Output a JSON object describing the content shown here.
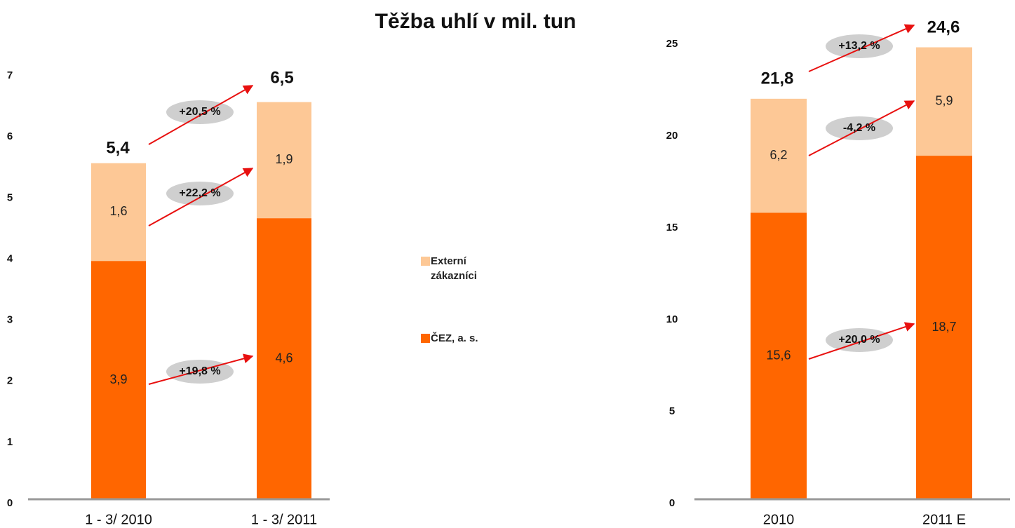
{
  "chart_data": [
    {
      "type": "stacked_bar",
      "title": "Těžba uhlí v mil. tun",
      "categories": [
        "1 - 3/ 2010",
        "1 - 3/ 2011"
      ],
      "series": [
        {
          "name": "ČEZ, a. s.",
          "color": "#ff6600",
          "values": [
            3.9,
            4.6
          ],
          "value_labels": [
            "3,9",
            "4,6"
          ]
        },
        {
          "name": "Externí zákazníci",
          "color": "#fdc896",
          "values": [
            1.6,
            1.9
          ],
          "value_labels": [
            "1,6",
            "1,9"
          ]
        }
      ],
      "totals": [
        5.4,
        6.5
      ],
      "total_labels": [
        "5,4",
        "6,5"
      ],
      "annotations": [
        "+20,5 %",
        "+22,2 %",
        "+19,8 %"
      ],
      "ylim": [
        0,
        7
      ],
      "yticks": [
        0,
        1,
        2,
        3,
        4,
        5,
        6,
        7
      ],
      "grid": false
    },
    {
      "type": "stacked_bar",
      "categories": [
        "2010",
        "2011 E"
      ],
      "series": [
        {
          "color": "#ff6600",
          "values": [
            15.6,
            18.7
          ],
          "value_labels": [
            "15,6",
            "18,7"
          ]
        },
        {
          "color": "#fdc896",
          "values": [
            6.2,
            5.9
          ],
          "value_labels": [
            "6,2",
            "5,9"
          ]
        }
      ],
      "totals": [
        21.8,
        24.6
      ],
      "total_labels": [
        "21,8",
        "24,6"
      ],
      "annotations": [
        "+13,2 %",
        "-4,2 %",
        "+20,0 %"
      ],
      "ylim": [
        0,
        25
      ],
      "yticks": [
        0,
        5,
        10,
        15,
        20,
        25
      ],
      "grid": false
    }
  ]
}
